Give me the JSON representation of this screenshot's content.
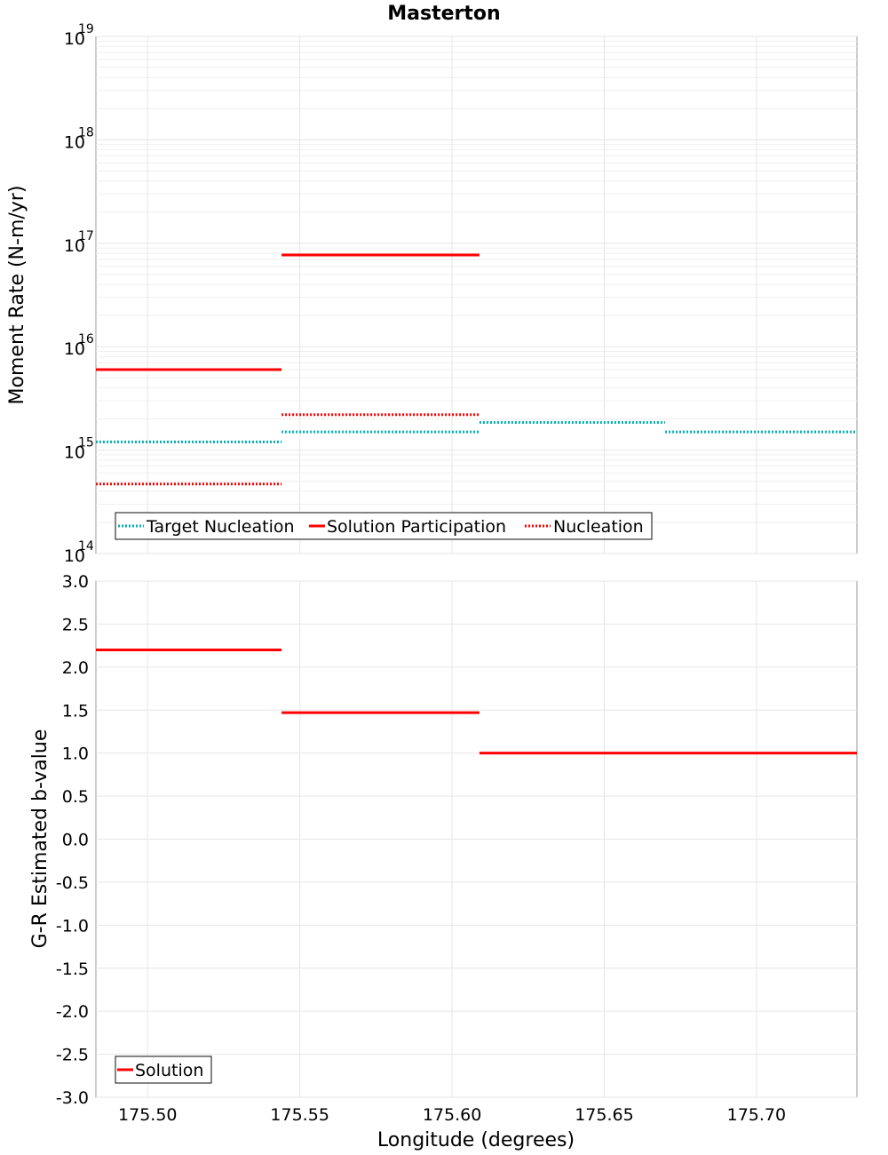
{
  "title": "Masterton",
  "colors": {
    "target": "#00b3b3",
    "solution": "#ff0000",
    "frame": "#9a9a9a",
    "grid": "#e6e6e6"
  },
  "chart_data": [
    {
      "type": "line",
      "title": "Masterton",
      "ylabel": "Moment Rate (N-m/yr)",
      "yscale": "log",
      "ylim": [
        100000000000000.0,
        1e+19
      ],
      "y_ticks": [
        {
          "base": "10",
          "exp": "14"
        },
        {
          "base": "10",
          "exp": "15"
        },
        {
          "base": "10",
          "exp": "16"
        },
        {
          "base": "10",
          "exp": "17"
        },
        {
          "base": "10",
          "exp": "18"
        },
        {
          "base": "10",
          "exp": "19"
        }
      ],
      "xlim": [
        175.483,
        175.733
      ],
      "grid": true,
      "legend_placement": "bottom-left",
      "series": [
        {
          "name": "Target Nucleation",
          "style": "dotted",
          "color": "#00b3b3",
          "segments": [
            {
              "x": [
                175.483,
                175.544
              ],
              "y": 1200000000000000.0
            },
            {
              "x": [
                175.544,
                175.609
              ],
              "y": 1500000000000000.0
            },
            {
              "x": [
                175.609,
                175.67
              ],
              "y": 1850000000000000.0
            },
            {
              "x": [
                175.67,
                175.733
              ],
              "y": 1500000000000000.0
            }
          ]
        },
        {
          "name": "Solution Participation",
          "style": "solid",
          "color": "#ff0000",
          "segments": [
            {
              "x": [
                175.483,
                175.544
              ],
              "y": 6000000000000000.0
            },
            {
              "x": [
                175.544,
                175.609
              ],
              "y": 7.7e+16
            }
          ]
        },
        {
          "name": "Nucleation",
          "style": "dotted",
          "color": "#ff0000",
          "segments": [
            {
              "x": [
                175.483,
                175.544
              ],
              "y": 470000000000000.0
            },
            {
              "x": [
                175.544,
                175.609
              ],
              "y": 2200000000000000.0
            }
          ]
        }
      ]
    },
    {
      "type": "line",
      "ylabel": "G-R Estimated b-value",
      "xlabel": "Longitude (degrees)",
      "ylim": [
        -3.0,
        3.0
      ],
      "y_ticks": [
        "-3.0",
        "-2.5",
        "-2.0",
        "-1.5",
        "-1.0",
        "-0.5",
        "0.0",
        "0.5",
        "1.0",
        "1.5",
        "2.0",
        "2.5",
        "3.0"
      ],
      "xlim": [
        175.483,
        175.733
      ],
      "x_ticks": [
        "175.50",
        "175.55",
        "175.60",
        "175.65",
        "175.70"
      ],
      "grid": true,
      "legend_placement": "bottom-left",
      "series": [
        {
          "name": "Solution",
          "style": "solid",
          "color": "#ff0000",
          "segments": [
            {
              "x": [
                175.483,
                175.544
              ],
              "y": 2.2
            },
            {
              "x": [
                175.544,
                175.609
              ],
              "y": 1.47
            },
            {
              "x": [
                175.609,
                175.733
              ],
              "y": 1.0
            }
          ]
        }
      ]
    }
  ]
}
